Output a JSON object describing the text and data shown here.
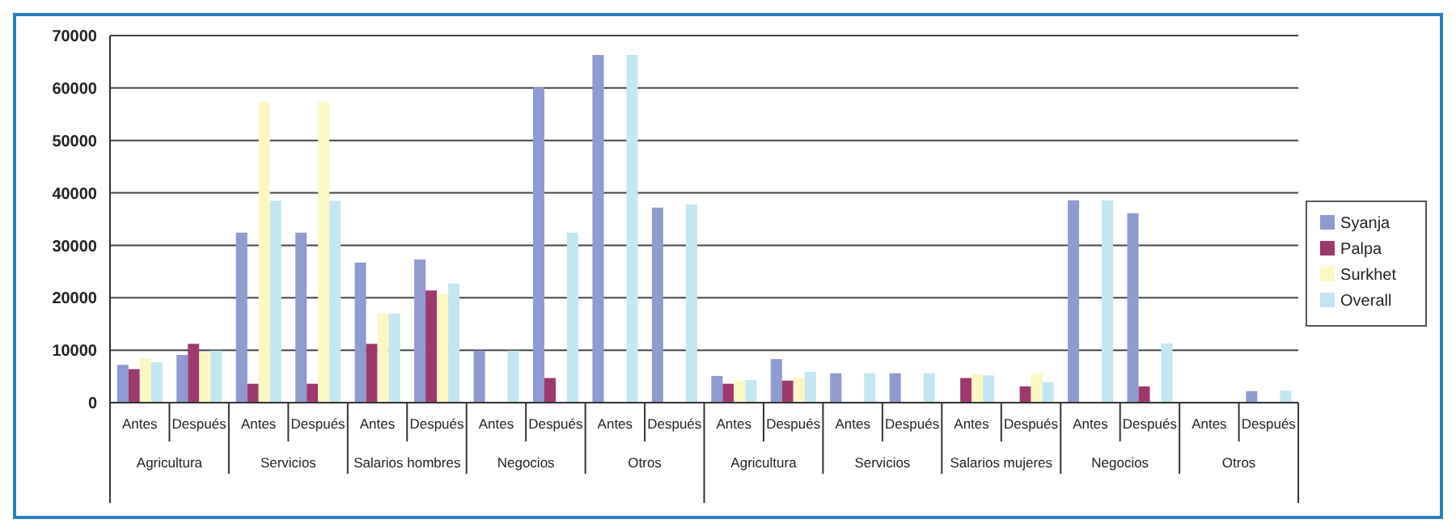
{
  "chart_data": {
    "type": "bar",
    "categories": [
      "Antes",
      "Después",
      "Antes",
      "Después",
      "Antes",
      "Después",
      "Antes",
      "Después",
      "Antes",
      "Después",
      "Antes",
      "Después",
      "Antes",
      "Después",
      "Antes",
      "Después",
      "Antes",
      "Después",
      "Antes",
      "Después"
    ],
    "annotations": [
      "Agricultura",
      "Servicios",
      "Salarios hombres",
      "Negocios",
      "Otros",
      "Agricultura",
      "Servicios",
      "Salarios mujeres",
      "Negocios",
      "Otros"
    ],
    "series": [
      {
        "name": "Syanja",
        "color": "#8e9ad0",
        "values": [
          7200,
          9100,
          32400,
          32400,
          26700,
          27300,
          9900,
          60100,
          66300,
          37200,
          5100,
          8300,
          5600,
          5600,
          0,
          0,
          38600,
          36100,
          0,
          2200
        ]
      },
      {
        "name": "Palpa",
        "color": "#9c3a6e",
        "values": [
          6400,
          11200,
          3600,
          3600,
          11200,
          21400,
          0,
          4700,
          0,
          0,
          3600,
          4200,
          0,
          0,
          4700,
          3100,
          0,
          3100,
          0,
          0
        ]
      },
      {
        "name": "Surkhet",
        "color": "#fbf8c4",
        "values": [
          8500,
          9600,
          57400,
          57400,
          17000,
          20700,
          0,
          0,
          0,
          0,
          4200,
          4800,
          0,
          0,
          5500,
          5600,
          0,
          0,
          0,
          0
        ]
      },
      {
        "name": "Overall",
        "color": "#c4e6f0",
        "values": [
          7700,
          9900,
          38500,
          38500,
          17000,
          22700,
          9900,
          32400,
          66300,
          37800,
          4300,
          5900,
          5600,
          5600,
          5200,
          3900,
          38600,
          11300,
          0,
          2300
        ]
      }
    ],
    "ylim": [
      0,
      70000
    ],
    "yticks": [
      0,
      10000,
      20000,
      30000,
      40000,
      50000,
      60000,
      70000
    ],
    "grid": "y",
    "legend": "right"
  }
}
